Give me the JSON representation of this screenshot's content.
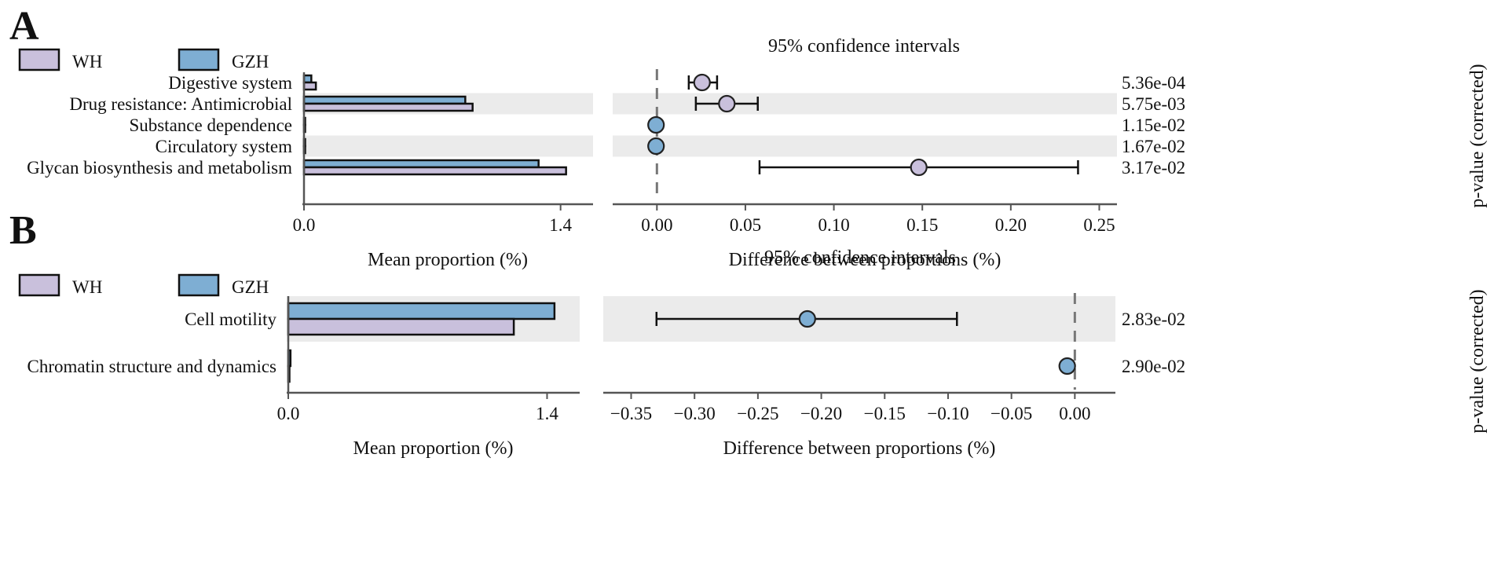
{
  "colors": {
    "WH": "#c9c0dc",
    "GZH": "#7eaed3"
  },
  "chart_data": [
    {
      "panel": "A",
      "type": "bar",
      "legend": [
        "WH",
        "GZH"
      ],
      "ci_title": "95% confidence intervals",
      "categories": [
        "Digestive system",
        "Drug resistance: Antimicrobial",
        "Substance dependence",
        "Circulatory system",
        "Glycan biosynthesis and metabolism"
      ],
      "series": [
        {
          "name": "WH",
          "values": [
            0.065,
            0.92,
            0.005,
            0.005,
            1.43
          ]
        },
        {
          "name": "GZH",
          "values": [
            0.04,
            0.88,
            0.003,
            0.003,
            1.28
          ]
        }
      ],
      "xlabel_bar": "Mean proportion (%)",
      "bar_xlim": [
        0,
        1.5
      ],
      "bar_ticks": [
        0.0,
        1.4
      ],
      "bar_tick_labels": [
        "0.0",
        "1.4"
      ],
      "diff": [
        0.0255,
        0.0395,
        -0.0005,
        -0.0005,
        0.148
      ],
      "ci_low": [
        0.018,
        0.022,
        -0.0005,
        -0.0005,
        0.058
      ],
      "ci_high": [
        0.034,
        0.057,
        -0.0005,
        -0.0005,
        0.238
      ],
      "diff_xlim": [
        -0.025,
        0.26
      ],
      "diff_ticks": [
        0.0,
        0.05,
        0.1,
        0.15,
        0.2,
        0.25
      ],
      "diff_tick_labels": [
        "0.00",
        "0.05",
        "0.10",
        "0.15",
        "0.20",
        "0.25"
      ],
      "xlabel_diff": "Difference between proportions (%)",
      "pvalues": [
        "5.36e-04",
        "5.75e-03",
        "1.15e-02",
        "1.67e-02",
        "3.17e-02"
      ],
      "ylabel_p": "p-value (corrected)"
    },
    {
      "panel": "B",
      "type": "bar",
      "legend": [
        "WH",
        "GZH"
      ],
      "ci_title": "95% confidence intervals",
      "categories": [
        "Cell motility",
        "Chromatin structure and dynamics"
      ],
      "series": [
        {
          "name": "WH",
          "values": [
            1.22,
            0.003
          ]
        },
        {
          "name": "GZH",
          "values": [
            1.44,
            0.012
          ]
        }
      ],
      "xlabel_bar": "Mean proportion (%)",
      "bar_xlim": [
        0,
        1.5
      ],
      "bar_ticks": [
        0.0,
        1.4
      ],
      "bar_tick_labels": [
        "0.0",
        "1.4"
      ],
      "diff": [
        -0.211,
        -0.006
      ],
      "ci_low": [
        -0.33,
        -0.006
      ],
      "ci_high": [
        -0.093,
        -0.006
      ],
      "diff_xlim": [
        -0.372,
        0.032
      ],
      "diff_ticks": [
        -0.35,
        -0.3,
        -0.25,
        -0.2,
        -0.15,
        -0.1,
        -0.05,
        0.0
      ],
      "diff_tick_labels": [
        "−0.35",
        "−0.30",
        "−0.25",
        "−0.20",
        "−0.15",
        "−0.10",
        "−0.05",
        "0.00"
      ],
      "xlabel_diff": "Difference between proportions (%)",
      "pvalues": [
        "2.83e-02",
        "2.90e-02"
      ],
      "ylabel_p": "p-value (corrected)"
    }
  ]
}
